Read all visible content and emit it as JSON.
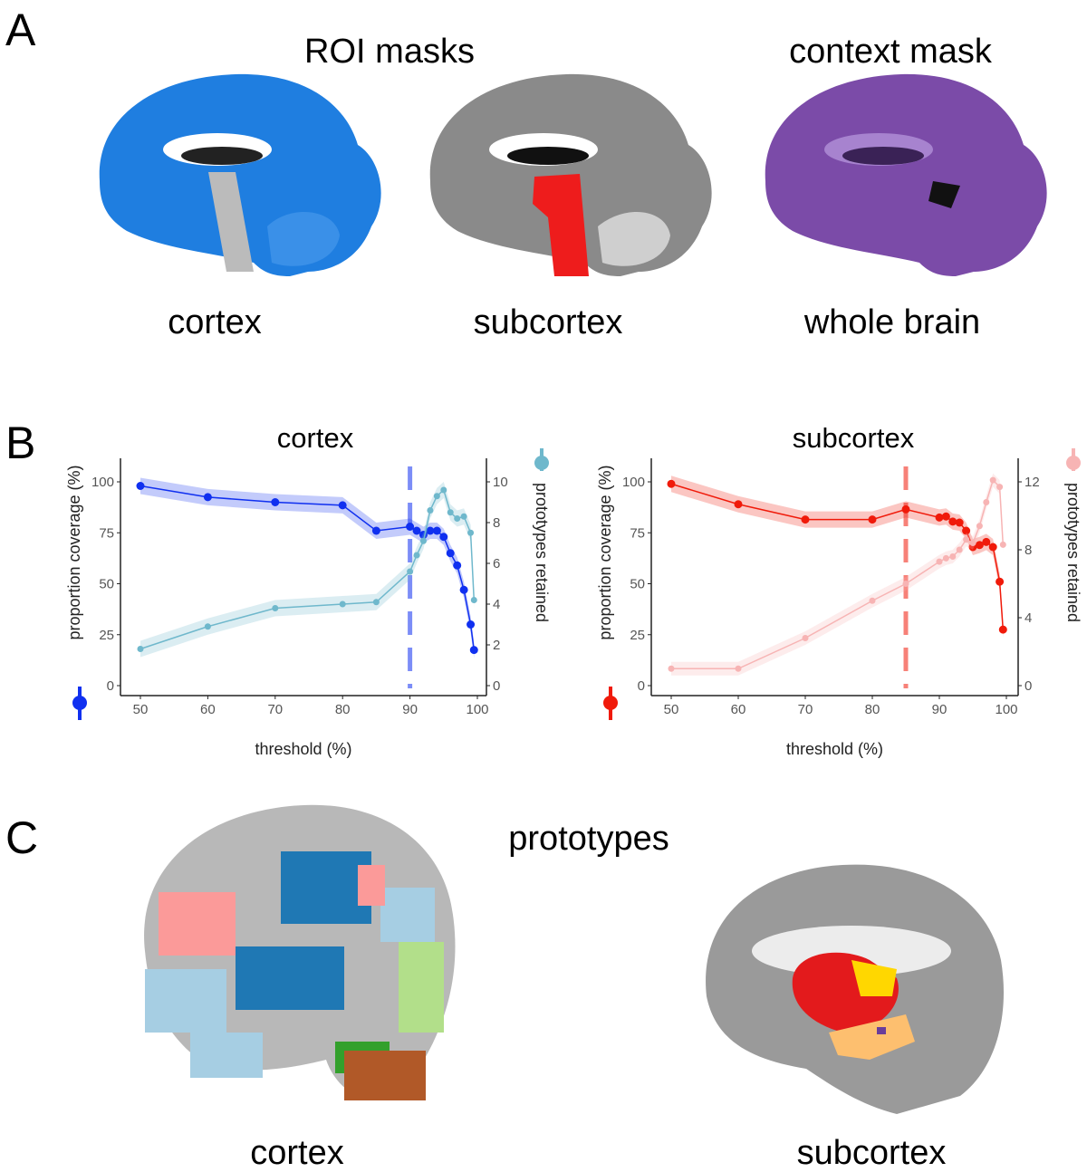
{
  "panel_a": {
    "letter": "A",
    "roi_title": "ROI masks",
    "context_title": "context mask",
    "labels": [
      "cortex",
      "subcortex",
      "whole brain"
    ],
    "mask_colors": [
      "#1f7ee0",
      "#ee1c1c",
      "#7b4ba8"
    ]
  },
  "panel_b": {
    "letter": "B"
  },
  "panel_c": {
    "letter": "C",
    "title": "prototypes",
    "labels": [
      "cortex",
      "subcortex"
    ],
    "cortex_colors": [
      "#1f78b4",
      "#a6cee3",
      "#fb9a99",
      "#b2df8a",
      "#33a02c",
      "#b15928"
    ],
    "subcortex_colors": [
      "#e31a1c",
      "#ffd700",
      "#fdbf6f",
      "#6a3d9a"
    ]
  },
  "chart_data": [
    {
      "type": "line",
      "title": "cortex",
      "xlabel": "threshold (%)",
      "ylabel": "proportion coverage (%)",
      "y2label": "prototypes retained",
      "xlim": [
        50,
        100
      ],
      "ylim": [
        0,
        100
      ],
      "y2lim": [
        0,
        10
      ],
      "xticks": [
        "50",
        "60",
        "70",
        "80",
        "90",
        "100"
      ],
      "yticks": [
        "0",
        "25",
        "50",
        "75",
        "100"
      ],
      "y2ticks": [
        "0",
        "2",
        "4",
        "6",
        "8",
        "10"
      ],
      "threshold_line": 90,
      "x": [
        50,
        60,
        70,
        80,
        85,
        90,
        91,
        92,
        93,
        94,
        95,
        96,
        97,
        98,
        99,
        99.5
      ],
      "series": [
        {
          "axis": "left",
          "color": "#1030f0",
          "values": [
            98,
            92.5,
            90,
            88.5,
            76,
            78,
            76,
            74,
            76,
            76,
            73,
            65,
            59,
            47,
            30,
            17.5
          ]
        },
        {
          "axis": "right",
          "color": "#6fb8cc",
          "values": [
            1.8,
            2.9,
            3.8,
            4.0,
            4.1,
            5.6,
            6.4,
            7.1,
            8.6,
            9.3,
            9.6,
            8.5,
            8.2,
            8.3,
            7.5,
            4.2
          ]
        }
      ]
    },
    {
      "type": "line",
      "title": "subcortex",
      "xlabel": "threshold (%)",
      "ylabel": "proportion coverage (%)",
      "y2label": "prototypes retained",
      "xlim": [
        50,
        100
      ],
      "ylim": [
        0,
        100
      ],
      "y2lim": [
        0,
        12
      ],
      "xticks": [
        "50",
        "60",
        "70",
        "80",
        "90",
        "100"
      ],
      "yticks": [
        "0",
        "25",
        "50",
        "75",
        "100"
      ],
      "y2ticks": [
        "0",
        "4",
        "8",
        "12"
      ],
      "threshold_line": 85,
      "x": [
        50,
        60,
        70,
        80,
        85,
        90,
        91,
        92,
        93,
        94,
        95,
        96,
        97,
        98,
        99,
        99.5
      ],
      "series": [
        {
          "axis": "left",
          "color": "#f01a0a",
          "values": [
            99,
            89,
            81.5,
            81.5,
            86.5,
            82.5,
            83,
            80.5,
            80,
            76,
            68,
            69,
            70.5,
            68,
            51,
            27.5
          ]
        },
        {
          "axis": "right",
          "color": "#f7b4b4",
          "values": [
            1,
            1,
            2.8,
            5,
            6,
            7.3,
            7.5,
            7.6,
            8.0,
            8.6,
            8.4,
            9.4,
            10.8,
            12.1,
            11.7,
            8.3
          ]
        }
      ]
    }
  ]
}
